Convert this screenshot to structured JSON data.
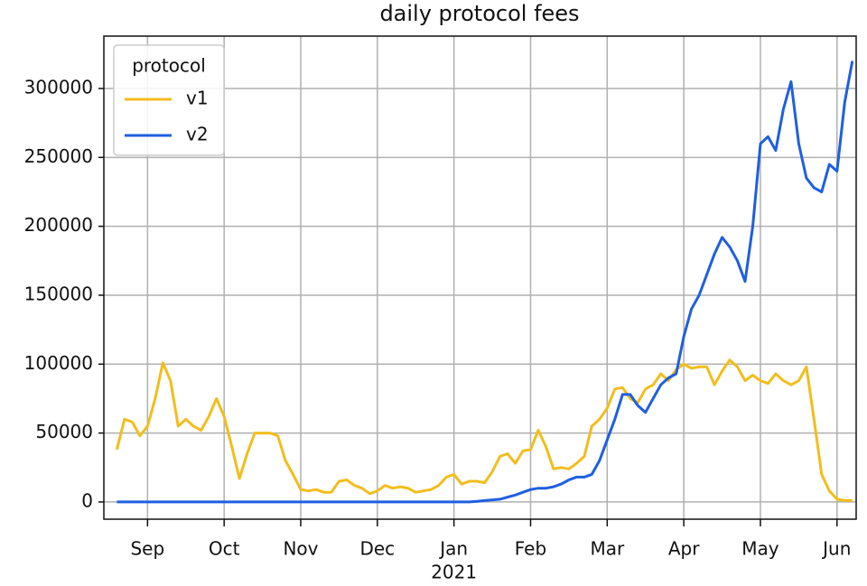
{
  "chart_data": {
    "type": "line",
    "title": "daily protocol fees",
    "legend_title": "protocol",
    "legend": "upper left",
    "grid": true,
    "year_label": "2021",
    "x": [
      0.6,
      0.7,
      0.8,
      0.9,
      1.0,
      1.1,
      1.2,
      1.3,
      1.4,
      1.5,
      1.6,
      1.7,
      1.8,
      1.9,
      2.0,
      2.1,
      2.2,
      2.3,
      2.4,
      2.5,
      2.6,
      2.7,
      2.8,
      2.9,
      3.0,
      3.1,
      3.2,
      3.3,
      3.4,
      3.5,
      3.6,
      3.7,
      3.8,
      3.9,
      4.0,
      4.1,
      4.2,
      4.3,
      4.4,
      4.5,
      4.6,
      4.7,
      4.8,
      4.9,
      5.0,
      5.1,
      5.2,
      5.3,
      5.4,
      5.5,
      5.6,
      5.7,
      5.8,
      5.9,
      6.0,
      6.1,
      6.2,
      6.3,
      6.4,
      6.5,
      6.6,
      6.7,
      6.8,
      6.9,
      7.0,
      7.1,
      7.2,
      7.3,
      7.4,
      7.5,
      7.6,
      7.7,
      7.8,
      7.9,
      8.0,
      8.1,
      8.2,
      8.3,
      8.4,
      8.5,
      8.6,
      8.7,
      8.8,
      8.9,
      9.0,
      9.1,
      9.2,
      9.3,
      9.4,
      9.5,
      9.6,
      9.7,
      9.8,
      9.9,
      10.0,
      10.1,
      10.2
    ],
    "series": [
      {
        "name": "v1",
        "color": "#f2bd1d",
        "values": [
          38000,
          60000,
          58000,
          48000,
          55000,
          75000,
          101000,
          88000,
          55000,
          60000,
          55000,
          52000,
          62000,
          75000,
          62000,
          40000,
          17000,
          35000,
          50000,
          50000,
          50000,
          48000,
          30000,
          20000,
          9000,
          8000,
          9000,
          7000,
          7000,
          15000,
          16000,
          12000,
          10000,
          6000,
          8000,
          12000,
          10000,
          11000,
          10000,
          7000,
          8000,
          9000,
          12000,
          18000,
          20000,
          13000,
          15000,
          15000,
          14000,
          22000,
          33000,
          35000,
          28000,
          37000,
          38000,
          52000,
          40000,
          24000,
          25000,
          24000,
          28000,
          33000,
          55000,
          60000,
          68000,
          82000,
          83000,
          75000,
          72000,
          82000,
          85000,
          93000,
          88000,
          96000,
          100000,
          97000,
          98000,
          98000,
          85000,
          95000,
          103000,
          98000,
          88000,
          92000,
          88000,
          86000,
          93000,
          88000,
          85000,
          88000,
          98000,
          60000,
          20000,
          8000,
          2000,
          1000,
          1000
        ]
      },
      {
        "name": "v2",
        "color": "#1f5fe0",
        "values": [
          0,
          0,
          0,
          0,
          0,
          0,
          0,
          0,
          0,
          0,
          0,
          0,
          0,
          0,
          0,
          0,
          0,
          0,
          0,
          0,
          0,
          0,
          0,
          0,
          0,
          0,
          0,
          0,
          0,
          0,
          0,
          0,
          0,
          0,
          0,
          0,
          0,
          0,
          0,
          0,
          0,
          0,
          0,
          0,
          0,
          0,
          0,
          500,
          1000,
          1500,
          2000,
          3500,
          5000,
          7000,
          9000,
          10000,
          10000,
          11000,
          13000,
          16000,
          18000,
          18000,
          20000,
          30000,
          45000,
          60000,
          78000,
          78000,
          70000,
          65000,
          75000,
          85000,
          90000,
          93000,
          120000,
          140000,
          150000,
          165000,
          180000,
          192000,
          185000,
          175000,
          160000,
          200000,
          260000,
          265000,
          255000,
          285000,
          305000,
          260000,
          235000,
          228000,
          225000,
          245000,
          240000,
          290000,
          320000
        ]
      }
    ],
    "xlim": [
      0.43,
      10.25
    ],
    "xticks": [
      {
        "value": 1,
        "label": "Sep"
      },
      {
        "value": 2,
        "label": "Oct"
      },
      {
        "value": 3,
        "label": "Nov"
      },
      {
        "value": 4,
        "label": "Dec"
      },
      {
        "value": 5,
        "label": "Jan"
      },
      {
        "value": 6,
        "label": "Feb"
      },
      {
        "value": 7,
        "label": "Mar"
      },
      {
        "value": 8,
        "label": "Apr"
      },
      {
        "value": 9,
        "label": "May"
      },
      {
        "value": 10,
        "label": "Jun"
      }
    ],
    "ylim": [
      -12500,
      338000
    ],
    "yticks": [
      0,
      50000,
      100000,
      150000,
      200000,
      250000,
      300000
    ]
  }
}
